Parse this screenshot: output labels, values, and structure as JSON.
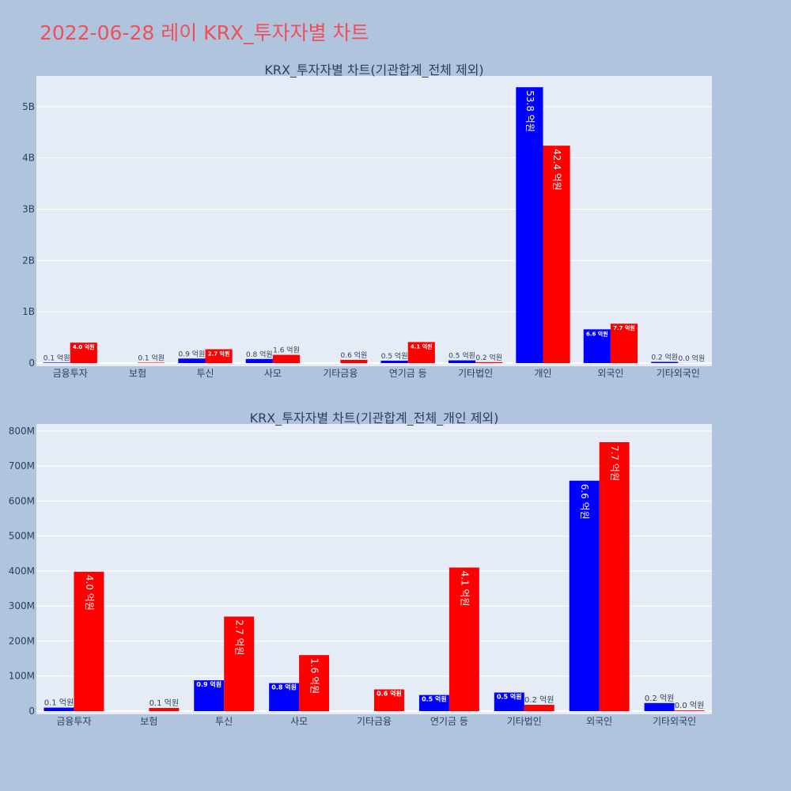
{
  "page": {
    "title": "2022-06-28 레이 KRX_투자자별 차트"
  },
  "colors": {
    "series1": "#0000ff",
    "series2": "#ff0000",
    "plot_bg": "#e5ecf6",
    "page_bg": "#b0c4de",
    "title": "#ef4e5a"
  },
  "chart_data": [
    {
      "type": "bar",
      "title": "KRX_투자자별 차트(기관합계_전체 제외)",
      "categories": [
        "금융투자",
        "보험",
        "투신",
        "사모",
        "기타금융",
        "연기금 등",
        "기타법인",
        "개인",
        "외국인",
        "기타외국인"
      ],
      "ylim": [
        0,
        5600000000
      ],
      "yticks": [
        0,
        1000000000,
        2000000000,
        3000000000,
        4000000000,
        5000000000
      ],
      "ytick_labels": [
        "0",
        "1B",
        "2B",
        "3B",
        "4B",
        "5B"
      ],
      "grid": true,
      "series": [
        {
          "color": "#0000ff",
          "values": [
            10000000,
            0,
            88000000,
            80000000,
            0,
            46000000,
            53000000,
            5380000000,
            658000000,
            23000000
          ],
          "labels": [
            "0.1 억원",
            "",
            "0.9 억원",
            "0.8 억원",
            "",
            "0.5 억원",
            "0.5 억원",
            "53.8 억원",
            "6.6 억원",
            "0.2 억원"
          ]
        },
        {
          "color": "#ff0000",
          "values": [
            398000000,
            9000000,
            270000000,
            160000000,
            62000000,
            410000000,
            18000000,
            4240000000,
            768000000,
            2000000
          ],
          "labels": [
            "4.0 억원",
            "0.1 억원",
            "2.7 억원",
            "1.6 억원",
            "0.6 억원",
            "4.1 억원",
            "0.2 억원",
            "42.4 억원",
            "7.7 억원",
            "0.0 억원"
          ]
        }
      ]
    },
    {
      "type": "bar",
      "title": "KRX_투자자별 차트(기관합계_전체_개인 제외)",
      "categories": [
        "금융투자",
        "보험",
        "투신",
        "사모",
        "기타금융",
        "연기금 등",
        "기타법인",
        "외국인",
        "기타외국인"
      ],
      "ylim": [
        0,
        820000000
      ],
      "yticks": [
        0,
        100000000,
        200000000,
        300000000,
        400000000,
        500000000,
        600000000,
        700000000,
        800000000
      ],
      "ytick_labels": [
        "0",
        "100M",
        "200M",
        "300M",
        "400M",
        "500M",
        "600M",
        "700M",
        "800M"
      ],
      "grid": true,
      "series": [
        {
          "color": "#0000ff",
          "values": [
            10000000,
            0,
            88000000,
            80000000,
            0,
            46000000,
            53000000,
            658000000,
            23000000
          ],
          "labels": [
            "0.1 억원",
            "",
            "0.9 억원",
            "0.8 억원",
            "",
            "0.5 억원",
            "0.5 억원",
            "6.6 억원",
            "0.2 억원"
          ]
        },
        {
          "color": "#ff0000",
          "values": [
            398000000,
            9000000,
            270000000,
            160000000,
            62000000,
            410000000,
            18000000,
            768000000,
            2000000
          ],
          "labels": [
            "4.0 억원",
            "0.1 억원",
            "2.7 억원",
            "1.6 억원",
            "0.6 억원",
            "4.1 억원",
            "0.2 억원",
            "7.7 억원",
            "0.0 억원"
          ]
        }
      ]
    }
  ]
}
